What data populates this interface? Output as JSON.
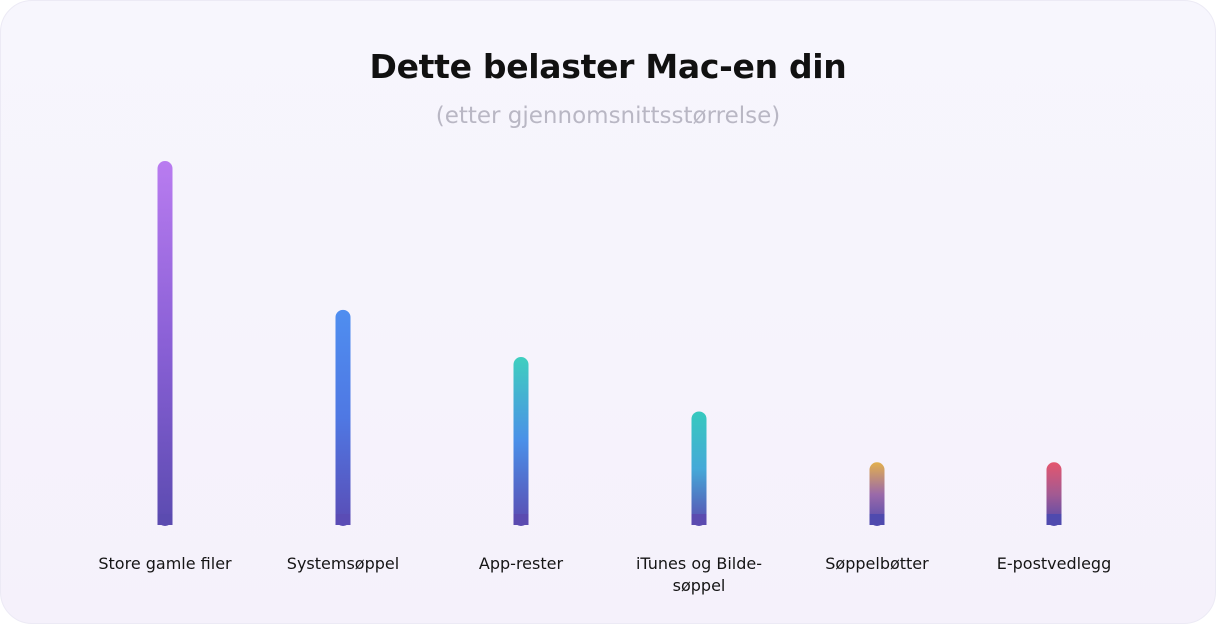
{
  "chart_data": {
    "type": "bar",
    "title": "Dette belaster Mac-en din",
    "subtitle": "(etter gjennomsnittsstørrelse)",
    "categories": [
      [
        "Store gamle filer"
      ],
      [
        "Systemsøppel"
      ],
      [
        "App-rester"
      ],
      [
        "iTunes og Bilde-",
        "søppel"
      ],
      [
        "Søppelbøtter"
      ],
      [
        "E-postvedlegg"
      ]
    ],
    "values": [
      100,
      59,
      46,
      31,
      17,
      17
    ],
    "ylim": [
      0,
      100
    ],
    "xlabel": "",
    "ylabel": "",
    "grid": false,
    "bar_colors": [
      [
        "#b97cf0",
        "#8a60d6",
        "#5b4bb0"
      ],
      [
        "#4f8ef0",
        "#4f78e3",
        "#5a4cb5"
      ],
      [
        "#3fcfbf",
        "#4b8fe8",
        "#5b4bb0"
      ],
      [
        "#36c9be",
        "#45a9d8",
        "#5b4bb0"
      ],
      [
        "#e2b04e",
        "#9b6aa9",
        "#4f4aae"
      ],
      [
        "#e4566e",
        "#a35a92",
        "#4f4aae"
      ]
    ],
    "baseline_color": "#6e63b6"
  }
}
